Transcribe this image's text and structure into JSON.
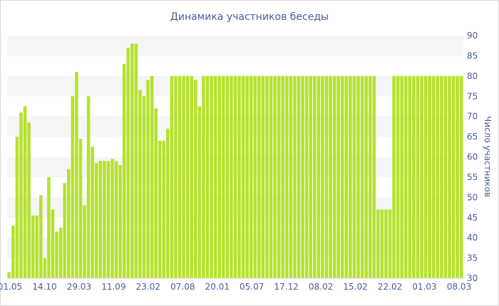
{
  "chart_data": {
    "type": "bar",
    "title": "Динамика участников беседы",
    "ylabel": "Число участников",
    "xlabel": "",
    "ylim": [
      30,
      90
    ],
    "y_ticks": [
      30,
      35,
      40,
      45,
      50,
      55,
      60,
      65,
      70,
      75,
      80,
      85,
      90
    ],
    "x_tick_labels": [
      "01.05",
      "14.10",
      "29.03",
      "11.09",
      "23.02",
      "07.08",
      "20.01",
      "05.07",
      "17.12",
      "08.02",
      "15.02",
      "22.02",
      "01.03",
      "08.03"
    ],
    "grid": "horizontal bands",
    "legend": "none",
    "bar_color": "#b5e22e",
    "values": [
      31.5,
      43,
      65,
      71,
      72.5,
      68.5,
      45.5,
      45.5,
      50.5,
      35,
      55,
      47,
      41.5,
      42.5,
      53.5,
      57,
      75,
      81,
      64.5,
      48,
      75,
      62.5,
      58.5,
      59,
      59,
      59,
      59.5,
      59,
      58,
      83,
      87,
      88,
      88,
      76.5,
      75,
      79,
      80,
      72,
      64,
      64,
      67,
      80,
      80,
      80,
      80,
      80,
      80,
      79,
      72.5,
      80,
      80,
      80,
      80,
      80,
      80,
      80,
      80,
      80,
      80,
      80,
      80,
      80,
      80,
      80,
      80,
      80,
      80,
      80,
      80,
      80,
      80,
      80,
      80,
      80,
      80,
      80,
      80,
      80,
      80,
      80,
      80,
      80,
      80,
      80,
      80,
      80,
      80,
      80,
      80,
      80,
      80,
      80,
      80,
      47,
      47,
      47,
      47,
      80,
      80,
      80,
      80,
      80,
      80,
      80,
      80,
      80,
      80,
      80,
      80,
      80,
      80,
      80,
      80,
      80,
      80
    ]
  }
}
